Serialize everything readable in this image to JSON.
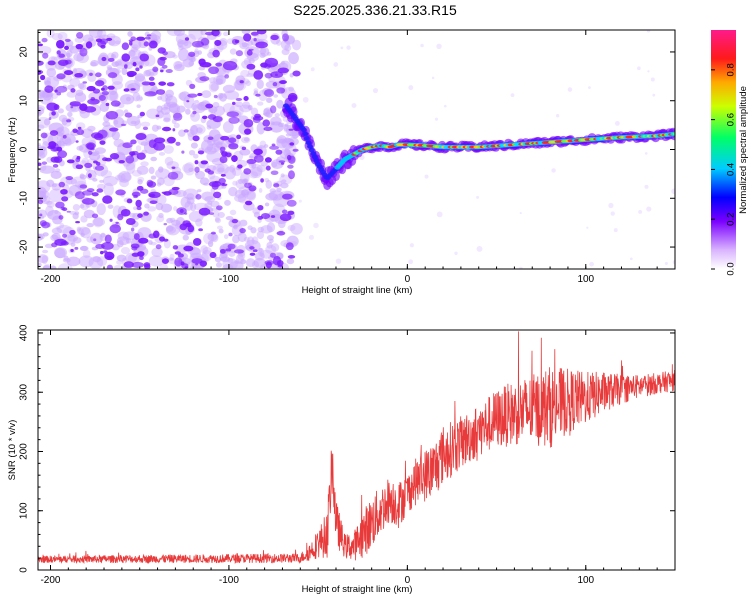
{
  "title": "S225.2025.336.21.33.R15",
  "chart_data": [
    {
      "type": "heatmap",
      "xlabel": "Height of straight line (km)",
      "ylabel": "Frequency (Hz)",
      "xlim": [
        -207,
        150
      ],
      "ylim": [
        -24.5,
        24.5
      ],
      "xticks": [
        -200,
        -100,
        0,
        100
      ],
      "yticks": [
        -20,
        -10,
        0,
        10,
        20
      ],
      "ridge": {
        "x": [
          -68,
          -62,
          -58,
          -55,
          -50,
          -45,
          -40,
          -35,
          -30,
          -25,
          -20,
          -15,
          -10,
          -5,
          0,
          10,
          20,
          40,
          60,
          80,
          100,
          120,
          140,
          150
        ],
        "freq": [
          9,
          6,
          4,
          1,
          -3,
          -6,
          -4,
          -2,
          -1,
          0,
          0.5,
          0.8,
          0.5,
          1,
          1,
          0.8,
          0.5,
          0.5,
          1,
          1.5,
          2,
          2.5,
          2.8,
          3.2
        ]
      },
      "noise_region_km": [
        -207,
        -62
      ],
      "colorbar": {
        "label": "Normalized spectral amplitude",
        "ticks": [
          "0.0",
          "0.2",
          "0.4",
          "0.6",
          "0.8"
        ],
        "range": [
          0,
          0.96
        ]
      }
    },
    {
      "type": "line",
      "xlabel": "Height of straight line (km)",
      "ylabel": "SNR (10 * v/v)",
      "xlim": [
        -207,
        150
      ],
      "ylim": [
        0,
        405
      ],
      "xticks": [
        -200,
        -100,
        0,
        100
      ],
      "yticks": [
        0,
        100,
        200,
        300,
        400
      ],
      "series": [
        {
          "name": "SNR",
          "color": "#e83a3a",
          "envelope": {
            "x": [
              -207,
              -60,
              -55,
              -50,
              -45,
              -42,
              -40,
              -35,
              -30,
              -25,
              -20,
              -10,
              -5,
              0,
              5,
              10,
              15,
              20,
              30,
              40,
              50,
              60,
              70,
              80,
              90,
              100,
              110,
              120,
              130,
              140,
              150
            ],
            "mean": [
              18,
              20,
              30,
              45,
              60,
              180,
              80,
              40,
              40,
              60,
              80,
              120,
              110,
              130,
              150,
              160,
              170,
              195,
              215,
              235,
              255,
              265,
              270,
              275,
              285,
              290,
              300,
              305,
              310,
              315,
              320
            ],
            "spread": [
              6,
              8,
              15,
              25,
              40,
              50,
              40,
              20,
              25,
              40,
              45,
              40,
              40,
              35,
              40,
              45,
              50,
              50,
              45,
              45,
              50,
              55,
              60,
              70,
              55,
              45,
              35,
              25,
              20,
              18,
              18
            ]
          }
        }
      ]
    }
  ]
}
